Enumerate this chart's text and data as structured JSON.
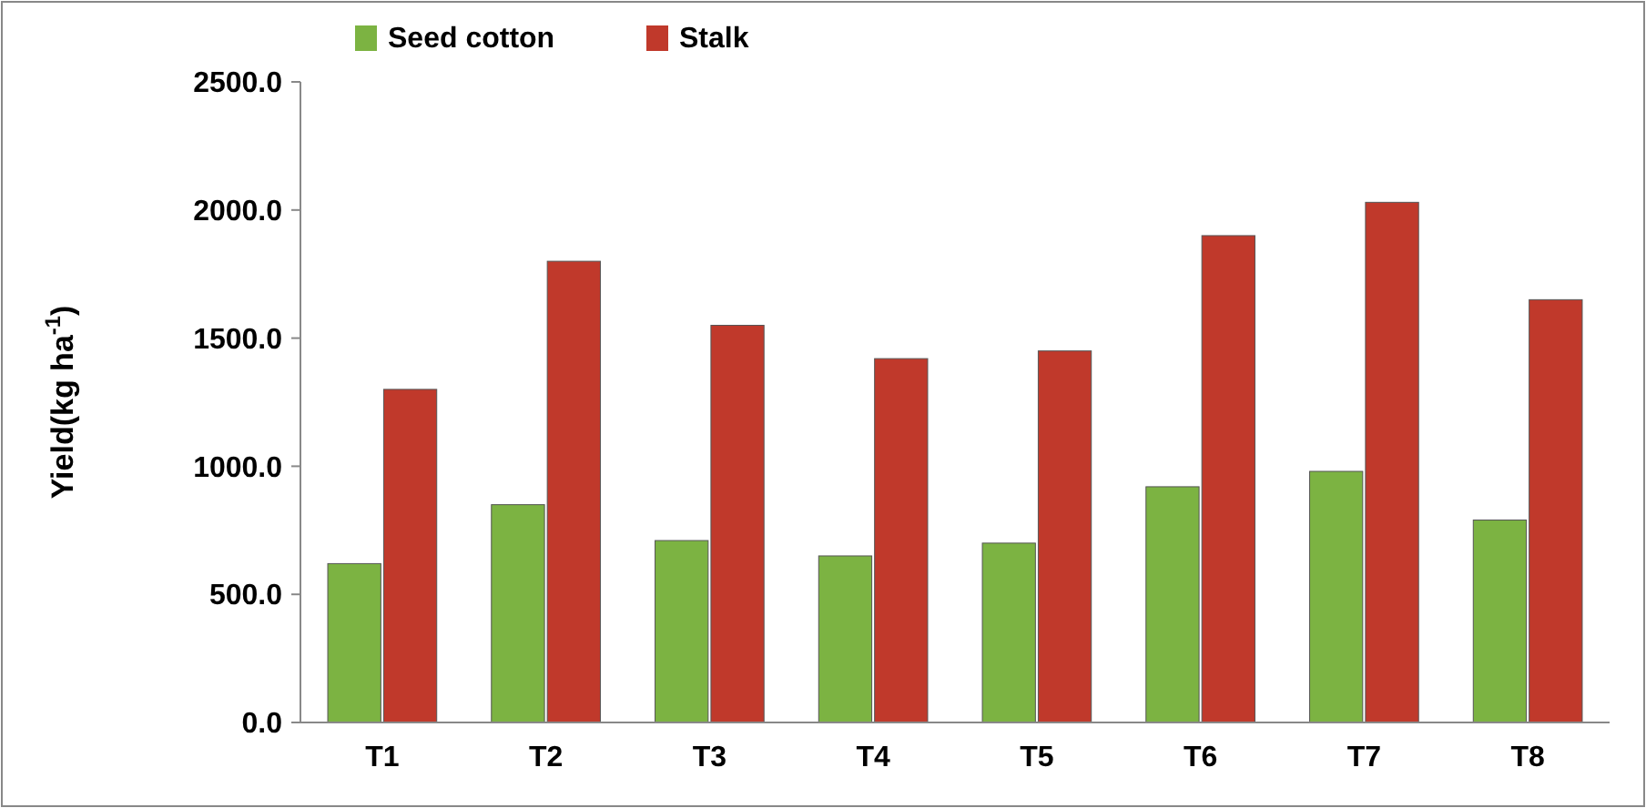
{
  "chart_data": {
    "type": "bar",
    "ylabel": "Yield(kg ha$^{-1}$)",
    "categories": [
      "T1",
      "T2",
      "T3",
      "T4",
      "T5",
      "T6",
      "T7",
      "T8"
    ],
    "series": [
      {
        "name": "Seed cotton",
        "color": "#7cb342",
        "values": [
          620,
          850,
          710,
          650,
          700,
          920,
          980,
          790
        ]
      },
      {
        "name": "Stalk",
        "color": "#c0392b",
        "values": [
          1300,
          1800,
          1550,
          1420,
          1450,
          1900,
          2030,
          1650
        ]
      }
    ],
    "ylim": [
      0,
      2500
    ],
    "yticks": [
      {
        "value": 0,
        "label": "0.0"
      },
      {
        "value": 500,
        "label": "500.0"
      },
      {
        "value": 1000,
        "label": "1000.0"
      },
      {
        "value": 1500,
        "label": "1500.0"
      },
      {
        "value": 2000,
        "label": "2000.0"
      },
      {
        "value": 2500,
        "label": "2500.0"
      }
    ],
    "grid": false,
    "legend": "top left"
  }
}
